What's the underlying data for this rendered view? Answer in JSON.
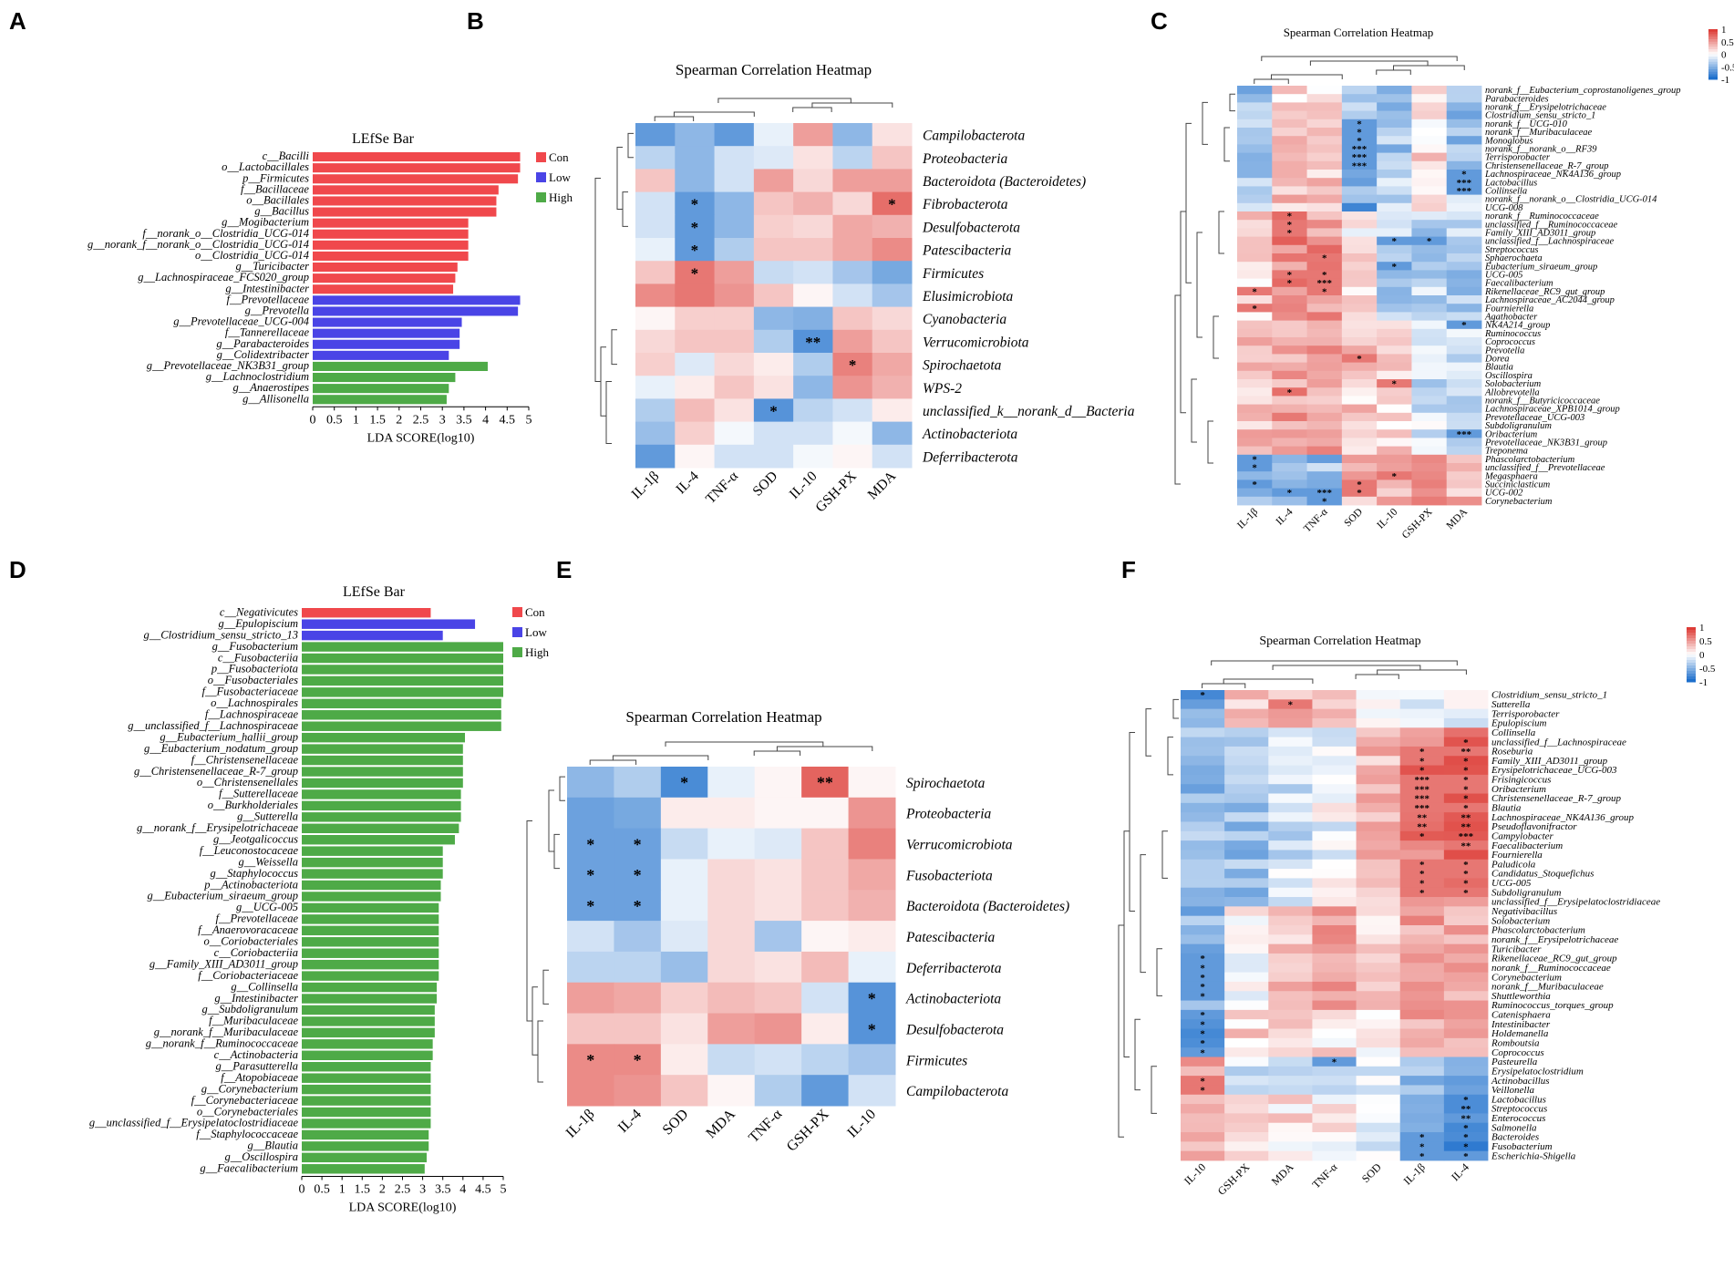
{
  "panel_labels": [
    "A",
    "B",
    "C",
    "D",
    "E",
    "F"
  ],
  "colors": {
    "Con": "#f0484c",
    "Low": "#4a44e6",
    "High": "#4eaa47",
    "neg": "#1d6fcc",
    "pos": "#dd3d37",
    "mid": "#ffffff"
  },
  "chart_data": [
    {
      "id": "A",
      "type": "bar",
      "orientation": "horizontal",
      "title": "LEfSe Bar",
      "xlabel": "LDA SCORE(log10)",
      "xlim": [
        0,
        5
      ],
      "ticks": [
        "0",
        "0.5",
        "1",
        "1.5",
        "2",
        "2.5",
        "3",
        "3.5",
        "4",
        "4.5",
        "5"
      ],
      "legend": [
        "Con",
        "Low",
        "High"
      ],
      "categories": [
        "c__Bacilli",
        "o__Lactobacillales",
        "p__Firmicutes",
        "f__Bacillaceae",
        "o__Bacillales",
        "g__Bacillus",
        "g__Mogibacterium",
        "f__norank_o__Clostridia_UCG-014",
        "g__norank_f__norank_o__Clostridia_UCG-014",
        "o__Clostridia_UCG-014",
        "g__Turicibacter",
        "g__Lachnospiraceae_FCS020_group",
        "g__Intestinibacter",
        "f__Prevotellaceae",
        "g__Prevotella",
        "g__Prevotellaceae_UCG-004",
        "f__Tannerellaceae",
        "g__Parabacteroides",
        "g__Colidextribacter",
        "g__Prevotellaceae_NK3B31_group",
        "g__Lachnoclostridium",
        "g__Anaerostipes",
        "g__Allisonella"
      ],
      "values": [
        4.8,
        4.8,
        4.75,
        4.3,
        4.25,
        4.25,
        3.6,
        3.6,
        3.6,
        3.6,
        3.35,
        3.3,
        3.25,
        4.8,
        4.75,
        3.45,
        3.4,
        3.4,
        3.15,
        4.05,
        3.3,
        3.15,
        3.1
      ],
      "groups": [
        "Con",
        "Con",
        "Con",
        "Con",
        "Con",
        "Con",
        "Con",
        "Con",
        "Con",
        "Con",
        "Con",
        "Con",
        "Con",
        "Low",
        "Low",
        "Low",
        "Low",
        "Low",
        "Low",
        "High",
        "High",
        "High",
        "High"
      ]
    },
    {
      "id": "B",
      "type": "heatmap",
      "title": "Spearman Correlation Heatmap",
      "columns": [
        "IL-1β",
        "IL-4",
        "TNF-α",
        "SOD",
        "IL-10",
        "GSH-PX",
        "MDA"
      ],
      "rows": [
        "Campilobacterota",
        "Proteobacteria",
        "Bacteroidota (Bacteroidetes)",
        "Fibrobacterota",
        "Desulfobacterota",
        "Patescibacteria",
        "Firmicutes",
        "Elusimicrobiota",
        "Cyanobacteria",
        "Verrucomicrobiota",
        "Spirochaetota",
        "WPS-2",
        "unclassified_k__norank_d__Bacteria",
        "Actinobacteriota",
        "Deferribacterota"
      ],
      "values": [
        [
          -0.7,
          -0.5,
          -0.7,
          -0.1,
          0.5,
          -0.5,
          0.15
        ],
        [
          -0.3,
          -0.5,
          -0.2,
          -0.15,
          0.15,
          -0.3,
          0.3
        ],
        [
          0.3,
          -0.5,
          -0.2,
          0.5,
          0.2,
          0.5,
          0.5
        ],
        [
          -0.2,
          -0.7,
          -0.5,
          0.3,
          0.4,
          0.2,
          0.75
        ],
        [
          -0.2,
          -0.7,
          -0.5,
          0.25,
          0.2,
          0.45,
          0.4
        ],
        [
          -0.1,
          -0.7,
          -0.35,
          0.3,
          0.3,
          0.45,
          0.6
        ],
        [
          0.3,
          0.7,
          0.5,
          -0.25,
          -0.2,
          -0.4,
          -0.6
        ],
        [
          0.6,
          0.7,
          0.55,
          0.3,
          0.05,
          -0.2,
          -0.4
        ],
        [
          0.05,
          0.25,
          0.25,
          -0.5,
          -0.55,
          0.3,
          0.2
        ],
        [
          0.2,
          0.3,
          0.3,
          -0.35,
          -0.75,
          0.5,
          0.3
        ],
        [
          0.25,
          -0.15,
          0.2,
          0.1,
          -0.35,
          0.65,
          0.45
        ],
        [
          -0.1,
          0.1,
          0.3,
          0.15,
          -0.5,
          0.55,
          0.4
        ],
        [
          -0.35,
          0.35,
          0.15,
          -0.75,
          -0.3,
          -0.2,
          0.1
        ],
        [
          -0.45,
          0.25,
          -0.05,
          -0.2,
          -0.2,
          -0.05,
          -0.5
        ],
        [
          -0.7,
          0.05,
          -0.2,
          -0.2,
          -0.05,
          0.05,
          -0.2
        ]
      ],
      "stars": [
        [
          "",
          "",
          "",
          "",
          "",
          "",
          ""
        ],
        [
          "",
          "",
          "",
          "",
          "",
          "",
          ""
        ],
        [
          "",
          "",
          "",
          "",
          "",
          "",
          ""
        ],
        [
          "",
          "*",
          "",
          "",
          "",
          "",
          "*"
        ],
        [
          "",
          "*",
          "",
          "",
          "",
          "",
          ""
        ],
        [
          "",
          "*",
          "",
          "",
          "",
          "",
          ""
        ],
        [
          "",
          "*",
          "",
          "",
          "",
          "",
          ""
        ],
        [
          "",
          "",
          "",
          "",
          "",
          "",
          ""
        ],
        [
          "",
          "",
          "",
          "",
          "",
          "",
          ""
        ],
        [
          "",
          "",
          "",
          "",
          "**",
          "",
          ""
        ],
        [
          "",
          "",
          "",
          "",
          "",
          "*",
          ""
        ],
        [
          "",
          "",
          "",
          "",
          "",
          "",
          ""
        ],
        [
          "",
          "",
          "",
          "*",
          "",
          "",
          ""
        ],
        [
          "",
          "",
          "",
          "",
          "",
          "",
          ""
        ],
        [
          "",
          "",
          "",
          "",
          "",
          "",
          ""
        ]
      ]
    },
    {
      "id": "C",
      "type": "heatmap",
      "title": "Spearman Correlation Heatmap",
      "legend_ticks": [
        "1",
        "0.5",
        "0",
        "-0.5",
        "-1"
      ],
      "columns": [
        "IL-1β",
        "IL-4",
        "TNF-α",
        "SOD",
        "IL-10",
        "GSH-PX",
        "MDA"
      ],
      "rows": [
        "norank_f__Eubacterium_coprostanoligenes_group",
        "Parabacteroides",
        "norank_f__Erysipelotrichaceae",
        "Clostridium_sensu_stricto_1",
        "norank_f__UCG-010",
        "norank_f__Muribaculaceae",
        "Monoglobus",
        "norank_f__norank_o__RF39",
        "Terrisporobacter",
        "Christensenellaceae_R-7_group",
        "Lachnospiraceae_NK4A136_group",
        "Lactobacillus",
        "Collinsella",
        "norank_f__norank_o__Clostridia_UCG-014",
        "UCG-008",
        "norank_f__Ruminococcaceae",
        "unclassified_f__Ruminococcaceae",
        "Family_XIII_AD3011_group",
        "unclassified_f__Lachnospiraceae",
        "Streptococcus",
        "Sphaerochaeta",
        "Eubacterium_siraeum_group",
        "UCG-005",
        "Faecalibacterium",
        "Rikenellaceae_RC9_gut_group",
        "Lachnospiraceae_AC2044_group",
        "Fournierella",
        "Agathobacter",
        "NK4A214_group",
        "Ruminococcus",
        "Coprococcus",
        "Prevotella",
        "Dorea",
        "Blautia",
        "Oscillospira",
        "Solobacterium",
        "Allobrevotella",
        "norank_f__Butyricicoccaceae",
        "Lachnospiraceae_XPB1014_group",
        "Prevotellaceae_UCG-003",
        "Subdoligranulum",
        "Oribacterium",
        "Prevotellaceae_NK3B31_group",
        "Treponema",
        "Phascolarctobacterium",
        "unclassified_f__Prevotellaceae",
        "Megasphaera",
        "Succiniclasticum",
        "UCG-002",
        "Corynebacterium"
      ],
      "stars_list": [
        "4:3:*",
        "5:3:*",
        "6:3:*",
        "7:3:***",
        "8:3:***",
        "9:3:***",
        "10:6:*",
        "11:6:***",
        "12:6:***",
        "15:1:*",
        "16:1:*",
        "17:1:*",
        "18:4:*",
        "18:5:*",
        "20:2:*",
        "21:4:*",
        "22:1:*",
        "22:2:*",
        "23:1:*",
        "23:2:***",
        "24:0:*",
        "24:2:*",
        "26:0:*",
        "28:6:*",
        "32:3:*",
        "35:4:*",
        "36:1:*",
        "41:6:***",
        "44:0:*",
        "45:0:*",
        "46:4:*",
        "47:0:*",
        "47:3:*",
        "48:1:*",
        "48:2:***",
        "48:3:*",
        "49:2:*"
      ]
    },
    {
      "id": "D",
      "type": "bar",
      "orientation": "horizontal",
      "title": "LEfSe Bar",
      "xlabel": "LDA SCORE(log10)",
      "xlim": [
        0,
        5
      ],
      "ticks": [
        "0",
        "0.5",
        "1",
        "1.5",
        "2",
        "2.5",
        "3",
        "3.5",
        "4",
        "4.5",
        "5"
      ],
      "legend": [
        "Con",
        "Low",
        "High"
      ],
      "categories": [
        "c__Negativicutes",
        "g__Epulopiscium",
        "g__Clostridium_sensu_stricto_13",
        "g__Fusobacterium",
        "c__Fusobacteriia",
        "p__Fusobacteriota",
        "o__Fusobacteriales",
        "f__Fusobacteriaceae",
        "o__Lachnospirales",
        "f__Lachnospiraceae",
        "g__unclassified_f__Lachnospiraceae",
        "g__Eubacterium_hallii_group",
        "g__Eubacterium_nodatum_group",
        "f__Christensenellaceae",
        "g__Christensenellaceae_R-7_group",
        "o__Christensenellales",
        "f__Sutterellaceae",
        "o__Burkholderiales",
        "g__Sutterella",
        "g__norank_f__Erysipelotrichaceae",
        "g__Jeotgalicoccus",
        "f__Leuconostocaceae",
        "g__Weissella",
        "g__Staphylococcus",
        "p__Actinobacteriota",
        "g__Eubacterium_siraeum_group",
        "g__UCG-005",
        "f__Prevotellaceae",
        "f__Anaerovoracaceae",
        "o__Coriobacteriales",
        "c__Coriobacteriia",
        "g__Family_XIII_AD3011_group",
        "f__Coriobacteriaceae",
        "g__Collinsella",
        "g__Intestinibacter",
        "g__Subdoligranulum",
        "f__Muribaculaceae",
        "g__norank_f__Muribaculaceae",
        "g__norank_f__Ruminococcaceae",
        "c__Actinobacteria",
        "g__Parasutterella",
        "f__Atopobiaceae",
        "g__Corynebacterium",
        "f__Corynebacteriaceae",
        "o__Corynebacteriales",
        "g__unclassified_f__Erysipelatoclostridiaceae",
        "f__Staphylococcaceae",
        "g__Blautia",
        "g__Oscillospira",
        "g__Faecalibacterium"
      ],
      "values": [
        3.2,
        4.3,
        3.5,
        5.0,
        5.0,
        5.0,
        5.0,
        5.0,
        4.95,
        4.95,
        4.95,
        4.05,
        4.0,
        4.0,
        4.0,
        4.0,
        3.95,
        3.95,
        3.95,
        3.9,
        3.8,
        3.5,
        3.5,
        3.5,
        3.45,
        3.45,
        3.4,
        3.4,
        3.4,
        3.4,
        3.4,
        3.4,
        3.4,
        3.35,
        3.35,
        3.3,
        3.3,
        3.3,
        3.25,
        3.25,
        3.2,
        3.2,
        3.2,
        3.2,
        3.2,
        3.2,
        3.15,
        3.15,
        3.1,
        3.05
      ],
      "groups": [
        "Con",
        "Low",
        "Low",
        "High",
        "High",
        "High",
        "High",
        "High",
        "High",
        "High",
        "High",
        "High",
        "High",
        "High",
        "High",
        "High",
        "High",
        "High",
        "High",
        "High",
        "High",
        "High",
        "High",
        "High",
        "High",
        "High",
        "High",
        "High",
        "High",
        "High",
        "High",
        "High",
        "High",
        "High",
        "High",
        "High",
        "High",
        "High",
        "High",
        "High",
        "High",
        "High",
        "High",
        "High",
        "High",
        "High",
        "High",
        "High",
        "High",
        "High"
      ]
    },
    {
      "id": "E",
      "type": "heatmap",
      "title": "Spearman Correlation Heatmap",
      "columns": [
        "IL-1β",
        "IL-4",
        "SOD",
        "MDA",
        "TNF-α",
        "GSH-PX",
        "IL-10"
      ],
      "rows": [
        "Spirochaetota",
        "Proteobacteria",
        "Verrucomicrobiota",
        "Fusobacteriota",
        "Bacteroidota (Bacteroidetes)",
        "Patescibacteria",
        "Deferribacterota",
        "Actinobacteriota",
        "Desulfobacterota",
        "Firmicutes",
        "Campilobacterota"
      ],
      "values": [
        [
          -0.5,
          -0.35,
          -0.8,
          -0.1,
          0.05,
          0.8,
          0.05
        ],
        [
          -0.65,
          -0.6,
          0.1,
          0.1,
          0.05,
          0.05,
          0.55
        ],
        [
          -0.65,
          -0.65,
          -0.25,
          -0.1,
          -0.15,
          0.3,
          0.65
        ],
        [
          -0.65,
          -0.65,
          -0.1,
          0.2,
          0.15,
          0.3,
          0.45
        ],
        [
          -0.65,
          -0.65,
          -0.1,
          0.2,
          0.15,
          0.3,
          0.4
        ],
        [
          -0.2,
          -0.4,
          -0.15,
          0.2,
          -0.4,
          0.05,
          0.1
        ],
        [
          -0.3,
          -0.3,
          -0.45,
          0.2,
          0.15,
          0.35,
          -0.1
        ],
        [
          0.5,
          0.45,
          0.25,
          0.35,
          0.3,
          -0.2,
          -0.75
        ],
        [
          0.3,
          0.3,
          0.15,
          0.5,
          0.55,
          0.1,
          -0.75
        ],
        [
          0.6,
          0.6,
          0.1,
          -0.25,
          -0.2,
          -0.3,
          -0.4
        ],
        [
          0.6,
          0.55,
          0.3,
          0.05,
          -0.35,
          -0.7,
          -0.2
        ]
      ],
      "stars": [
        [
          "",
          "",
          "*",
          "",
          "",
          "**",
          ""
        ],
        [
          "",
          "",
          "",
          "",
          "",
          "",
          ""
        ],
        [
          "*",
          "*",
          "",
          "",
          "",
          "",
          ""
        ],
        [
          "*",
          "*",
          "",
          "",
          "",
          "",
          ""
        ],
        [
          "*",
          "*",
          "",
          "",
          "",
          "",
          ""
        ],
        [
          "",
          "",
          "",
          "",
          "",
          "",
          ""
        ],
        [
          "",
          "",
          "",
          "",
          "",
          "",
          ""
        ],
        [
          "",
          "",
          "",
          "",
          "",
          "",
          "*"
        ],
        [
          "",
          "",
          "",
          "",
          "",
          "",
          "*"
        ],
        [
          "*",
          "*",
          "",
          "",
          "",
          "",
          ""
        ],
        [
          "",
          "",
          "",
          "",
          "",
          "",
          ""
        ]
      ]
    },
    {
      "id": "F",
      "type": "heatmap",
      "title": "Spearman Correlation Heatmap",
      "legend_ticks": [
        "1",
        "0.5",
        "0",
        "-0.5",
        "-1"
      ],
      "columns": [
        "IL-10",
        "GSH-PX",
        "MDA",
        "TNF-α",
        "SOD",
        "IL-1β",
        "IL-4"
      ],
      "rows": [
        "Clostridium_sensu_stricto_1",
        "Sutterella",
        "Terrisporobacter",
        "Epulopiscium",
        "Collinsella",
        "unclassified_f__Lachnospiraceae",
        "Roseburia",
        "Family_XIII_AD3011_group",
        "Erysipelotrichaceae_UCG-003",
        "Frisingicoccus",
        "Oribacterium",
        "Christensenellaceae_R-7_group",
        "Blautia",
        "Lachnospiraceae_NK4A136_group",
        "Pseudoflavonifractor",
        "Campylobacter",
        "Faecalibacterium",
        "Fournierella",
        "Paludicola",
        "Candidatus_Stoquefichus",
        "UCG-005",
        "Subdoligranulum",
        "unclassified_f__Erysipelatoclostridiaceae",
        "Negativibacillus",
        "Solobacterium",
        "Phascolarctobacterium",
        "norank_f__Erysipelotrichaceae",
        "Turicibacter",
        "Rikenellaceae_RC9_gut_group",
        "norank_f__Ruminococcaceae",
        "Corynebacterium",
        "norank_f__Muribaculaceae",
        "Shuttleworthia",
        "Ruminococcus_torques_group",
        "Catenisphaera",
        "Intestinibacter",
        "Holdemanella",
        "Romboutsia",
        "Coprococcus",
        "Pasteurella",
        "Erysipelatoclostridium",
        "Actinobacillus",
        "Veillonella",
        "Lactobacillus",
        "Streptococcus",
        "Enterococcus",
        "Salmonella",
        "Bacteroides",
        "Fusobacterium",
        "Escherichia-Shigella"
      ],
      "stars_list": [
        "0:0:*",
        "1:2:*",
        "5:6:*",
        "6:5:*",
        "6:6:**",
        "7:5:*",
        "7:6:*",
        "8:5:*",
        "8:6:*",
        "9:5:***",
        "9:6:*",
        "10:5:***",
        "10:6:*",
        "11:5:***",
        "11:6:*",
        "12:5:***",
        "12:6:*",
        "13:5:**",
        "13:6:**",
        "14:5:**",
        "14:6:**",
        "15:5:*",
        "15:6:***",
        "16:6:**",
        "18:5:*",
        "18:6:*",
        "19:5:*",
        "19:6:*",
        "20:5:*",
        "20:6:*",
        "21:5:*",
        "21:6:*",
        "28:0:*",
        "29:0:*",
        "30:0:*",
        "31:0:*",
        "32:0:*",
        "34:0:*",
        "35:0:*",
        "36:0:*",
        "37:0:*",
        "38:0:*",
        "39:3:*",
        "41:0:*",
        "42:0:*",
        "43:6:*",
        "44:6:**",
        "45:6:**",
        "46:6:*",
        "47:5:*",
        "47:6:*",
        "48:5:*",
        "48:6:*",
        "49:5:*",
        "49:6:*"
      ]
    }
  ]
}
